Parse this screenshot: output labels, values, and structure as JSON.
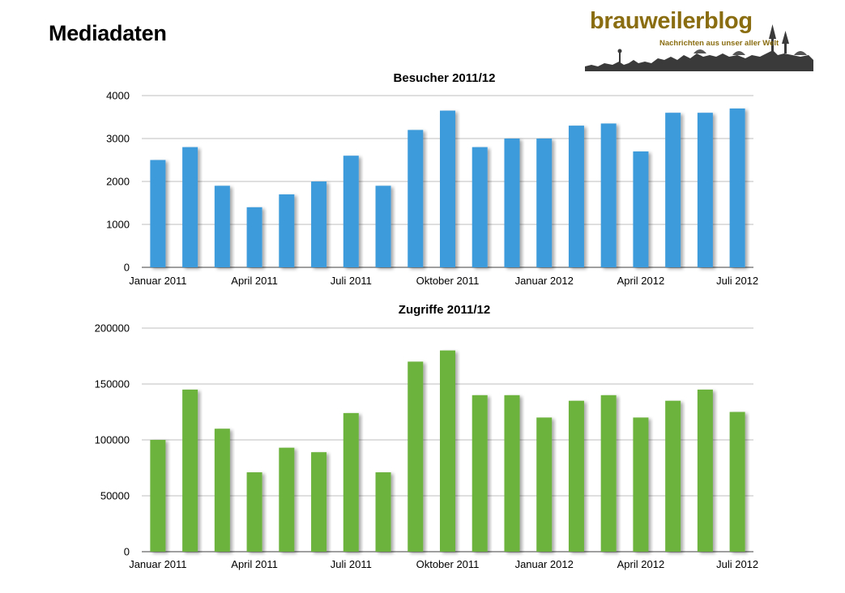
{
  "header": {
    "title": "Mediadaten"
  },
  "logo": {
    "name": "brauweilerblog",
    "tagline": "Nachrichten aus unser aller Welt"
  },
  "colors": {
    "visitors_bar": "#3d9bdc",
    "hits_bar": "#6cb33d",
    "grid": "#aaaaaa"
  },
  "chart_data": [
    {
      "type": "bar",
      "title": "Besucher 2011/12",
      "xlabel": "",
      "ylabel": "",
      "ylim": [
        0,
        4000
      ],
      "yticks": [
        "0",
        "1000",
        "2000",
        "3000",
        "4000"
      ],
      "xticks": [
        "Januar 2011",
        "April 2011",
        "Juli 2011",
        "Oktober 2011",
        "Januar 2012",
        "April 2012",
        "Juli 2012"
      ],
      "categories": [
        "2011-01",
        "2011-02",
        "2011-03",
        "2011-04",
        "2011-05",
        "2011-06",
        "2011-07",
        "2011-08",
        "2011-09",
        "2011-10",
        "2011-11",
        "2011-12",
        "2012-01",
        "2012-02",
        "2012-03",
        "2012-04",
        "2012-05",
        "2012-06",
        "2012-07"
      ],
      "values": [
        2500,
        2800,
        1900,
        1400,
        1700,
        2000,
        2600,
        1900,
        3200,
        3650,
        2800,
        3000,
        3000,
        3300,
        3350,
        2700,
        3600,
        3600,
        3700
      ],
      "grid": true,
      "legend": "none"
    },
    {
      "type": "bar",
      "title": "Zugriffe 2011/12",
      "xlabel": "",
      "ylabel": "",
      "ylim": [
        0,
        200000
      ],
      "yticks": [
        "0",
        "50000",
        "100000",
        "150000",
        "200000"
      ],
      "xticks": [
        "Januar 2011",
        "April 2011",
        "Juli 2011",
        "Oktober 2011",
        "Januar 2012",
        "April 2012",
        "Juli 2012"
      ],
      "categories": [
        "2011-01",
        "2011-02",
        "2011-03",
        "2011-04",
        "2011-05",
        "2011-06",
        "2011-07",
        "2011-08",
        "2011-09",
        "2011-10",
        "2011-11",
        "2011-12",
        "2012-01",
        "2012-02",
        "2012-03",
        "2012-04",
        "2012-05",
        "2012-06",
        "2012-07"
      ],
      "values": [
        100000,
        145000,
        110000,
        71000,
        93000,
        89000,
        124000,
        71000,
        170000,
        180000,
        140000,
        140000,
        120000,
        135000,
        140000,
        120000,
        135000,
        145000,
        125000
      ],
      "grid": true,
      "legend": "none"
    }
  ]
}
